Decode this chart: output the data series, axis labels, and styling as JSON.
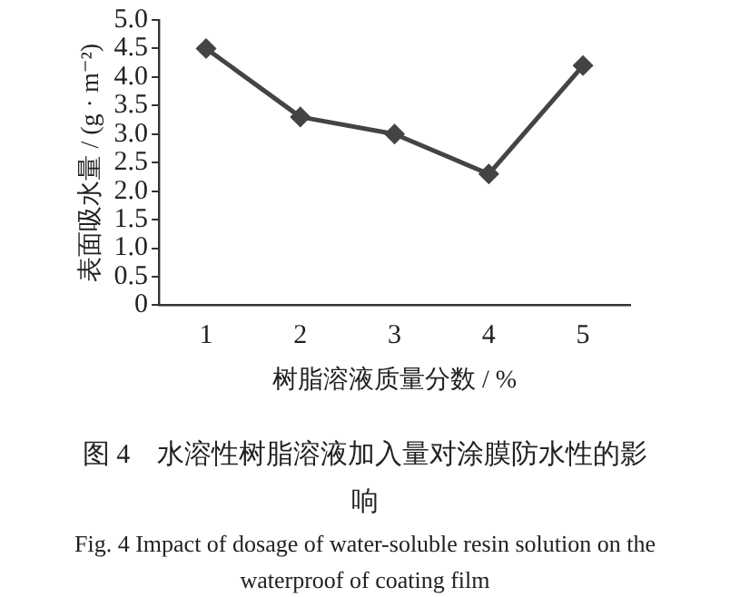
{
  "chart_data": {
    "type": "line",
    "xlabel": "树脂溶液质量分数 / %",
    "ylabel": "表面吸水量 / (g · m⁻²)",
    "categories": [
      "1",
      "2",
      "3",
      "4",
      "5"
    ],
    "series": [
      {
        "color": "#444444",
        "values": [
          4.5,
          3.3,
          3.0,
          2.3,
          4.2
        ]
      }
    ],
    "ylim": [
      0,
      5
    ],
    "yticks": [
      {
        "value": 0,
        "label": "0"
      },
      0.5,
      {
        "value": 1,
        "label": "1.0"
      },
      1.5,
      {
        "value": 2,
        "label": "2.0"
      },
      2.5,
      {
        "value": 3,
        "label": "3.0"
      },
      3.5,
      {
        "value": 4,
        "label": "4.0"
      },
      4.5,
      {
        "value": 5,
        "label": "5.0"
      }
    ],
    "grid": false,
    "legend": false,
    "marker": "diamond",
    "line_style": "solid",
    "annotations": [
      "图 4　水溶性树脂溶液加入量对涂膜防水性的影响",
      "Fig. 4 Impact of dosage of water-soluble resin solution on the waterproof of coating film"
    ]
  }
}
